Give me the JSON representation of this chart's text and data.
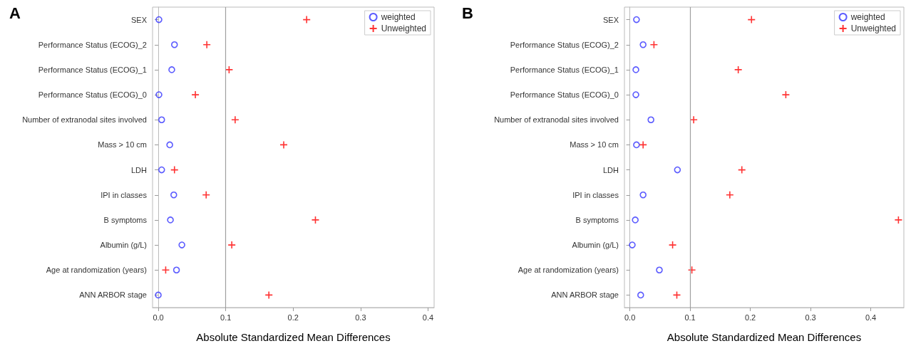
{
  "chart_data": [
    {
      "type": "scatter",
      "orientation": "horizontal",
      "title": "A",
      "xlabel": "Absolute Standardized Mean Differences",
      "categories": [
        "SEX",
        "Performance Status (ECOG)_2",
        "Performance Status (ECOG)_1",
        "Performance Status (ECOG)_0",
        "Number of extranodal sites involved",
        "Mass > 10 cm",
        "LDH",
        "IPI in classes",
        "B symptoms",
        "Albumin (g/L)",
        "Age at randomization (years)",
        "ANN ARBOR stage"
      ],
      "series": [
        {
          "name": "weighted",
          "color": "#3333ff",
          "marker": "circle",
          "values": [
            0.001,
            0.024,
            0.02,
            0.001,
            0.005,
            0.017,
            0.005,
            0.023,
            0.018,
            0.035,
            0.027,
            0.0
          ]
        },
        {
          "name": "Unweighted",
          "color": "#ff0000",
          "marker": "cross",
          "values": [
            0.22,
            0.072,
            0.105,
            0.055,
            0.114,
            0.186,
            0.024,
            0.071,
            0.233,
            0.109,
            0.011,
            0.164
          ]
        }
      ],
      "xlim": [
        -0.0085,
        0.409
      ],
      "xticks": [
        {
          "value": 0,
          "label": "0.0"
        },
        0.1,
        0.2,
        0.3,
        0.4
      ],
      "ref_lines": [
        {
          "axis": "x",
          "value": 0.1,
          "color": "#a0a0a0"
        }
      ],
      "grid": false,
      "legend": "top right"
    },
    {
      "type": "scatter",
      "orientation": "horizontal",
      "title": "B",
      "xlabel": "Absolute Standardized Mean Differences",
      "categories": [
        "SEX",
        "Performance Status (ECOG)_2",
        "Performance Status (ECOG)_1",
        "Performance Status (ECOG)_0",
        "Number of extranodal sites involved",
        "Mass > 10 cm",
        "LDH",
        "IPI in classes",
        "B symptoms",
        "Albumin (g/L)",
        "Age at randomization (years)",
        "ANN ARBOR stage"
      ],
      "series": [
        {
          "name": "weighted",
          "color": "#3333ff",
          "marker": "circle",
          "values": [
            0.011,
            0.022,
            0.01,
            0.01,
            0.035,
            0.011,
            0.079,
            0.022,
            0.009,
            0.004,
            0.049,
            0.018
          ]
        },
        {
          "name": "Unweighted",
          "color": "#ff0000",
          "marker": "cross",
          "values": [
            0.202,
            0.04,
            0.18,
            0.259,
            0.106,
            0.022,
            0.186,
            0.166,
            0.446,
            0.071,
            0.103,
            0.078
          ]
        }
      ],
      "xlim": [
        -0.009,
        0.455
      ],
      "xticks": [
        {
          "value": 0,
          "label": "0.0"
        },
        0.1,
        0.2,
        0.3,
        0.4
      ],
      "ref_lines": [
        {
          "axis": "x",
          "value": 0.1,
          "color": "#a0a0a0"
        }
      ],
      "grid": false,
      "legend": "top right"
    }
  ]
}
